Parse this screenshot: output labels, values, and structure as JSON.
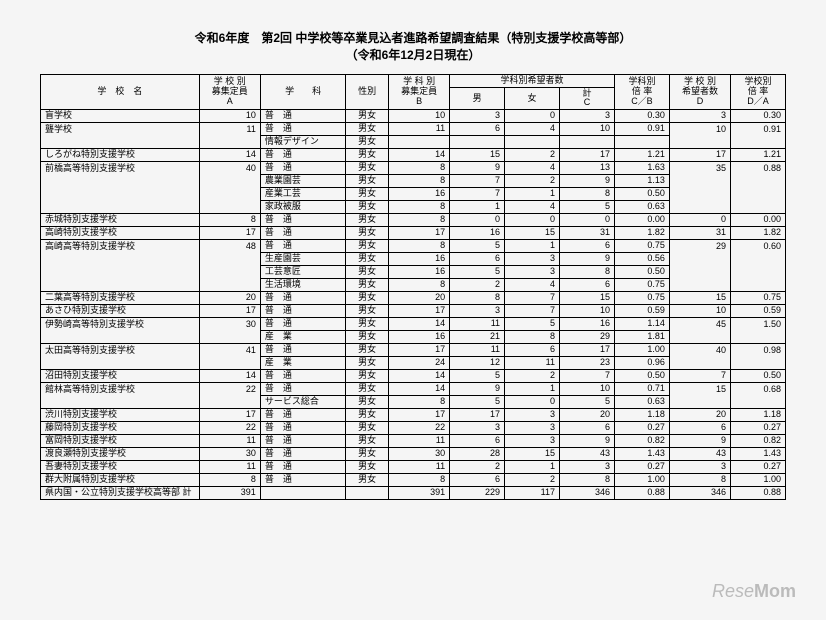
{
  "title1": "令和6年度　第2回 中学校等卒業見込者進路希望調査結果（特別支援学校高等部）",
  "title2": "（令和6年12月2日現在）",
  "watermark1": "Rese",
  "watermark2": "Mom",
  "headers": {
    "school": "学　校　名",
    "capA": "学 校 別\n募集定員\nA",
    "dept": "学　　科",
    "sex": "性別",
    "capB": "学 科 別\n募集定員\nB",
    "applGroup": "学科別希望者数",
    "male": "男",
    "female": "女",
    "totalC": "計\nC",
    "ratioCB": "学科別\n倍 率\nC／B",
    "applD": "学 校 別\n希望者数\nD",
    "ratioDA": "学校別\n倍 率\nD／A"
  },
  "rows": [
    {
      "school": "盲学校",
      "capA": "10",
      "dept": "普　通",
      "sex": "男女",
      "capB": "10",
      "m": "3",
      "f": "0",
      "c": "3",
      "cb": "0.30",
      "d": "3",
      "da": "0.30"
    },
    {
      "school": "聾学校",
      "capA": "11",
      "dept": "普　通",
      "sex": "男女",
      "capB": "11",
      "m": "6",
      "f": "4",
      "c": "10",
      "cb": "0.91",
      "d": "10",
      "da": "0.91",
      "thickBottom": false
    },
    {
      "school": "",
      "capA": "",
      "dept": "情報デザイン",
      "sex": "男女",
      "capB": "",
      "m": "",
      "f": "",
      "c": "",
      "cb": "",
      "d": "",
      "da": "",
      "thickBottom": true
    },
    {
      "school": "しろがね特別支援学校",
      "capA": "14",
      "dept": "普　通",
      "sex": "男女",
      "capB": "14",
      "m": "15",
      "f": "2",
      "c": "17",
      "cb": "1.21",
      "d": "17",
      "da": "1.21",
      "thickBottom": true
    },
    {
      "school": "前橋高等特別支援学校",
      "capA": "40",
      "dept": "普　通",
      "sex": "男女",
      "capB": "8",
      "m": "9",
      "f": "4",
      "c": "13",
      "cb": "1.63",
      "d": "35",
      "da": "0.88"
    },
    {
      "school": "",
      "capA": "",
      "dept": "農業園芸",
      "sex": "男女",
      "capB": "8",
      "m": "7",
      "f": "2",
      "c": "9",
      "cb": "1.13",
      "d": "",
      "da": ""
    },
    {
      "school": "",
      "capA": "",
      "dept": "産業工芸",
      "sex": "男女",
      "capB": "16",
      "m": "7",
      "f": "1",
      "c": "8",
      "cb": "0.50",
      "d": "",
      "da": ""
    },
    {
      "school": "",
      "capA": "",
      "dept": "家政被服",
      "sex": "男女",
      "capB": "8",
      "m": "1",
      "f": "4",
      "c": "5",
      "cb": "0.63",
      "d": "",
      "da": "",
      "thickBottom": true
    },
    {
      "school": "赤城特別支援学校",
      "capA": "8",
      "dept": "普　通",
      "sex": "男女",
      "capB": "8",
      "m": "0",
      "f": "0",
      "c": "0",
      "cb": "0.00",
      "d": "0",
      "da": "0.00",
      "thickBottom": true
    },
    {
      "school": "高崎特別支援学校",
      "capA": "17",
      "dept": "普　通",
      "sex": "男女",
      "capB": "17",
      "m": "16",
      "f": "15",
      "c": "31",
      "cb": "1.82",
      "d": "31",
      "da": "1.82",
      "thickBottom": true
    },
    {
      "school": "高崎高等特別支援学校",
      "capA": "48",
      "dept": "普　通",
      "sex": "男女",
      "capB": "8",
      "m": "5",
      "f": "1",
      "c": "6",
      "cb": "0.75",
      "d": "29",
      "da": "0.60"
    },
    {
      "school": "",
      "capA": "",
      "dept": "生産園芸",
      "sex": "男女",
      "capB": "16",
      "m": "6",
      "f": "3",
      "c": "9",
      "cb": "0.56",
      "d": "",
      "da": ""
    },
    {
      "school": "",
      "capA": "",
      "dept": "工芸意匠",
      "sex": "男女",
      "capB": "16",
      "m": "5",
      "f": "3",
      "c": "8",
      "cb": "0.50",
      "d": "",
      "da": ""
    },
    {
      "school": "",
      "capA": "",
      "dept": "生活環境",
      "sex": "男女",
      "capB": "8",
      "m": "2",
      "f": "4",
      "c": "6",
      "cb": "0.75",
      "d": "",
      "da": "",
      "thickBottom": true
    },
    {
      "school": "二葉高等特別支援学校",
      "capA": "20",
      "dept": "普　通",
      "sex": "男女",
      "capB": "20",
      "m": "8",
      "f": "7",
      "c": "15",
      "cb": "0.75",
      "d": "15",
      "da": "0.75",
      "thickBottom": true
    },
    {
      "school": "あさひ特別支援学校",
      "capA": "17",
      "dept": "普　通",
      "sex": "男女",
      "capB": "17",
      "m": "3",
      "f": "7",
      "c": "10",
      "cb": "0.59",
      "d": "10",
      "da": "0.59",
      "thickBottom": true
    },
    {
      "school": "伊勢崎高等特別支援学校",
      "capA": "30",
      "dept": "普　通",
      "sex": "男女",
      "capB": "14",
      "m": "11",
      "f": "5",
      "c": "16",
      "cb": "1.14",
      "d": "45",
      "da": "1.50"
    },
    {
      "school": "",
      "capA": "",
      "dept": "産　業",
      "sex": "男女",
      "capB": "16",
      "m": "21",
      "f": "8",
      "c": "29",
      "cb": "1.81",
      "d": "",
      "da": "",
      "thickBottom": true
    },
    {
      "school": "太田高等特別支援学校",
      "capA": "41",
      "dept": "普　通",
      "sex": "男女",
      "capB": "17",
      "m": "11",
      "f": "6",
      "c": "17",
      "cb": "1.00",
      "d": "40",
      "da": "0.98"
    },
    {
      "school": "",
      "capA": "",
      "dept": "産　業",
      "sex": "男女",
      "capB": "24",
      "m": "12",
      "f": "11",
      "c": "23",
      "cb": "0.96",
      "d": "",
      "da": "",
      "thickBottom": true
    },
    {
      "school": "沼田特別支援学校",
      "capA": "14",
      "dept": "普　通",
      "sex": "男女",
      "capB": "14",
      "m": "5",
      "f": "2",
      "c": "7",
      "cb": "0.50",
      "d": "7",
      "da": "0.50",
      "thickBottom": true
    },
    {
      "school": "館林高等特別支援学校",
      "capA": "22",
      "dept": "普　通",
      "sex": "男女",
      "capB": "14",
      "m": "9",
      "f": "1",
      "c": "10",
      "cb": "0.71",
      "d": "15",
      "da": "0.68"
    },
    {
      "school": "",
      "capA": "",
      "dept": "サービス総合",
      "sex": "男女",
      "capB": "8",
      "m": "5",
      "f": "0",
      "c": "5",
      "cb": "0.63",
      "d": "",
      "da": "",
      "thickBottom": true
    },
    {
      "school": "渋川特別支援学校",
      "capA": "17",
      "dept": "普　通",
      "sex": "男女",
      "capB": "17",
      "m": "17",
      "f": "3",
      "c": "20",
      "cb": "1.18",
      "d": "20",
      "da": "1.18",
      "thickBottom": true
    },
    {
      "school": "藤岡特別支援学校",
      "capA": "22",
      "dept": "普　通",
      "sex": "男女",
      "capB": "22",
      "m": "3",
      "f": "3",
      "c": "6",
      "cb": "0.27",
      "d": "6",
      "da": "0.27",
      "thickBottom": true
    },
    {
      "school": "富岡特別支援学校",
      "capA": "11",
      "dept": "普　通",
      "sex": "男女",
      "capB": "11",
      "m": "6",
      "f": "3",
      "c": "9",
      "cb": "0.82",
      "d": "9",
      "da": "0.82",
      "thickBottom": true
    },
    {
      "school": "渡良瀬特別支援学校",
      "capA": "30",
      "dept": "普　通",
      "sex": "男女",
      "capB": "30",
      "m": "28",
      "f": "15",
      "c": "43",
      "cb": "1.43",
      "d": "43",
      "da": "1.43",
      "thickBottom": true
    },
    {
      "school": "吾妻特別支援学校",
      "capA": "11",
      "dept": "普　通",
      "sex": "男女",
      "capB": "11",
      "m": "2",
      "f": "1",
      "c": "3",
      "cb": "0.27",
      "d": "3",
      "da": "0.27",
      "thickBottom": true
    },
    {
      "school": "群大附属特別支援学校",
      "capA": "8",
      "dept": "普　通",
      "sex": "男女",
      "capB": "8",
      "m": "6",
      "f": "2",
      "c": "8",
      "cb": "1.00",
      "d": "8",
      "da": "1.00",
      "thickBottom": true
    }
  ],
  "total": {
    "school": "県内国・公立特別支援学校高等部 計",
    "capA": "391",
    "capB": "391",
    "m": "229",
    "f": "117",
    "c": "346",
    "cb": "0.88",
    "d": "346",
    "da": "0.88"
  }
}
